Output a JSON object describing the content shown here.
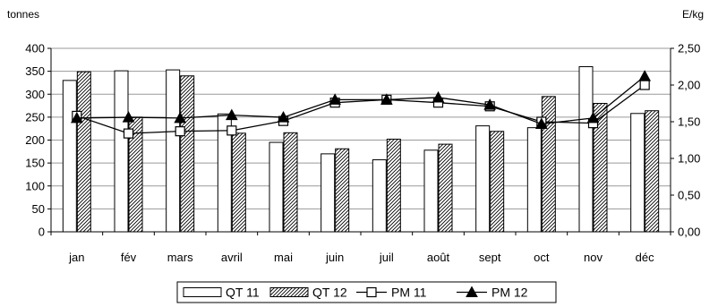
{
  "chart_data": {
    "type": "bar",
    "categories": [
      "jan",
      "fév",
      "mars",
      "avril",
      "mai",
      "juin",
      "juil",
      "août",
      "sept",
      "oct",
      "nov",
      "déc"
    ],
    "ylabel_left": "tonnes",
    "ylabel_right": "E/kg",
    "ylim_left": [
      0,
      400
    ],
    "yticks_left": [
      "0",
      "50",
      "100",
      "150",
      "200",
      "250",
      "300",
      "350",
      "400"
    ],
    "ylim_right": [
      0,
      2.5
    ],
    "yticks_right": [
      "0,00",
      "0,50",
      "1,00",
      "1,50",
      "2,00",
      "2,50"
    ],
    "grid": true,
    "legend_position": "bottom",
    "series": [
      {
        "name": "QT 11",
        "type": "bar",
        "axis": "left",
        "pattern": "white",
        "values": [
          330,
          351,
          353,
          257,
          195,
          170,
          157,
          178,
          231,
          227,
          360,
          258
        ]
      },
      {
        "name": "QT 12",
        "type": "bar",
        "axis": "left",
        "pattern": "hatched",
        "values": [
          349,
          250,
          340,
          215,
          216,
          181,
          202,
          191,
          219,
          295,
          280,
          264
        ]
      },
      {
        "name": "PM 11",
        "type": "line",
        "axis": "right",
        "marker": "open-square",
        "values": [
          1.58,
          1.34,
          1.37,
          1.38,
          1.51,
          1.76,
          1.8,
          1.76,
          1.71,
          1.5,
          1.48,
          2.0
        ]
      },
      {
        "name": "PM 12",
        "type": "line",
        "axis": "right",
        "marker": "filled-triangle",
        "values": [
          1.55,
          1.56,
          1.55,
          1.59,
          1.56,
          1.8,
          1.8,
          1.83,
          1.73,
          1.47,
          1.55,
          2.12
        ]
      }
    ]
  }
}
